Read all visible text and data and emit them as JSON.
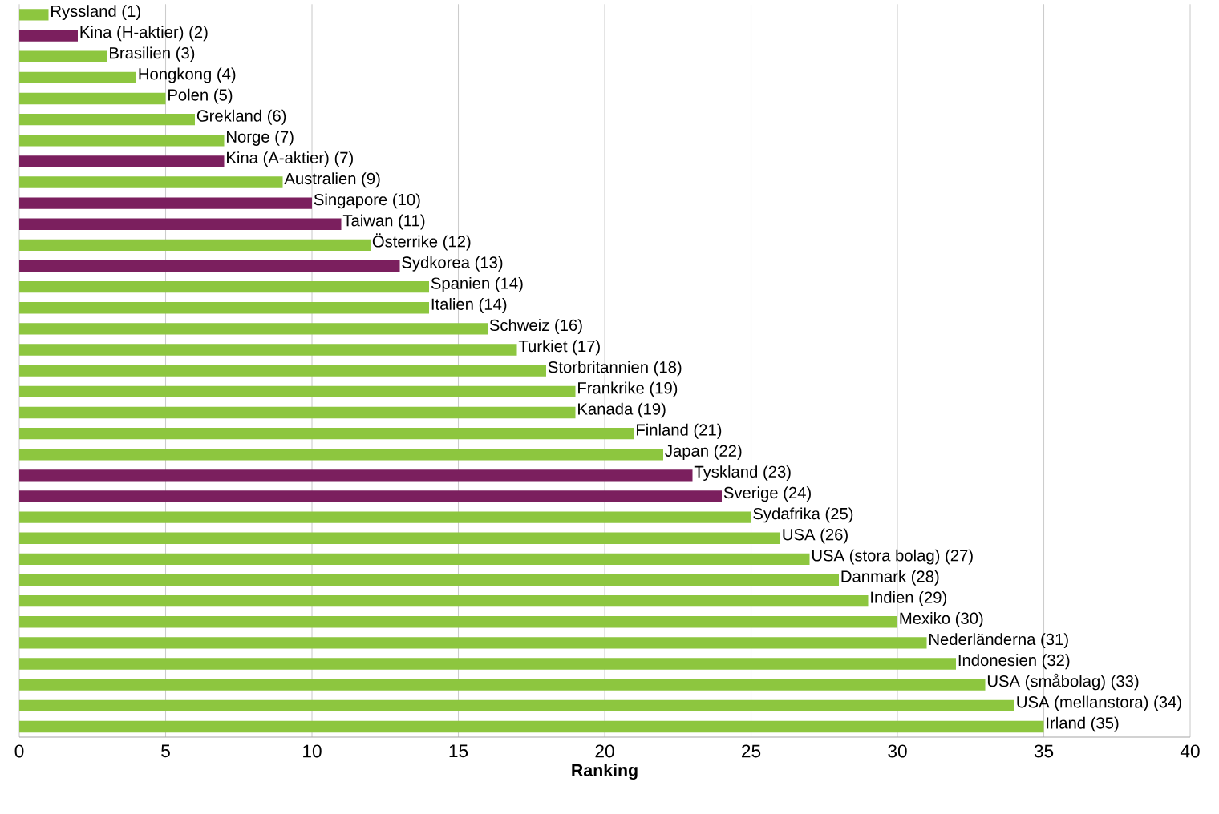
{
  "chart_data": {
    "type": "bar",
    "orientation": "horizontal",
    "xlabel": "Ranking",
    "categories": [
      null,
      null,
      null,
      null,
      null,
      null,
      null,
      null,
      null,
      null,
      null,
      null,
      null,
      null,
      null,
      null,
      null,
      null,
      null,
      null,
      null,
      null,
      null,
      null,
      null,
      null,
      null,
      null,
      null,
      null,
      null,
      null,
      null,
      null,
      null
    ],
    "values": [
      1,
      2,
      3,
      4,
      5,
      6,
      7,
      7,
      9,
      10,
      11,
      12,
      13,
      14,
      14,
      16,
      17,
      18,
      19,
      19,
      21,
      22,
      23,
      24,
      25,
      26,
      27,
      28,
      29,
      30,
      31,
      32,
      33,
      34,
      35
    ],
    "value_labels": [
      "Ryssland (1)",
      "Kina (H-aktier) (2)",
      "Brasilien (3)",
      "Hongkong (4)",
      "Polen (5)",
      "Grekland (6)",
      "Norge (7)",
      "Kina (A-aktier) (7)",
      "Australien (9)",
      "Singapore (10)",
      "Taiwan (11)",
      "Österrike (12)",
      "Sydkorea (13)",
      "Spanien (14)",
      "Italien (14)",
      "Schweiz (16)",
      "Turkiet (17)",
      "Storbritannien (18)",
      "Frankrike (19)",
      "Kanada (19)",
      "Finland (21)",
      "Japan (22)",
      "Tyskland (23)",
      "Sverige (24)",
      "Sydafrika (25)",
      "USA (26)",
      "USA (stora bolag) (27)",
      "Danmark (28)",
      "Indien (29)",
      "Mexiko (30)",
      "Nederländerna (31)",
      "Indonesien (32)",
      "USA (småbolag) (33)",
      "USA (mellanstora) (34)",
      "Irland (35)"
    ],
    "colors": [
      "#8dc63f",
      "#7b1f5e",
      "#8dc63f",
      "#8dc63f",
      "#8dc63f",
      "#8dc63f",
      "#8dc63f",
      "#7b1f5e",
      "#8dc63f",
      "#7b1f5e",
      "#7b1f5e",
      "#8dc63f",
      "#7b1f5e",
      "#8dc63f",
      "#8dc63f",
      "#8dc63f",
      "#8dc63f",
      "#8dc63f",
      "#8dc63f",
      "#8dc63f",
      "#8dc63f",
      "#8dc63f",
      "#7b1f5e",
      "#7b1f5e",
      "#8dc63f",
      "#8dc63f",
      "#8dc63f",
      "#8dc63f",
      "#8dc63f",
      "#8dc63f",
      "#8dc63f",
      "#8dc63f",
      "#8dc63f",
      "#8dc63f",
      "#8dc63f"
    ],
    "xlim": [
      0,
      40
    ],
    "xticks": [
      0,
      5,
      10,
      15,
      20,
      25,
      30,
      35,
      40
    ],
    "grid": "x"
  }
}
